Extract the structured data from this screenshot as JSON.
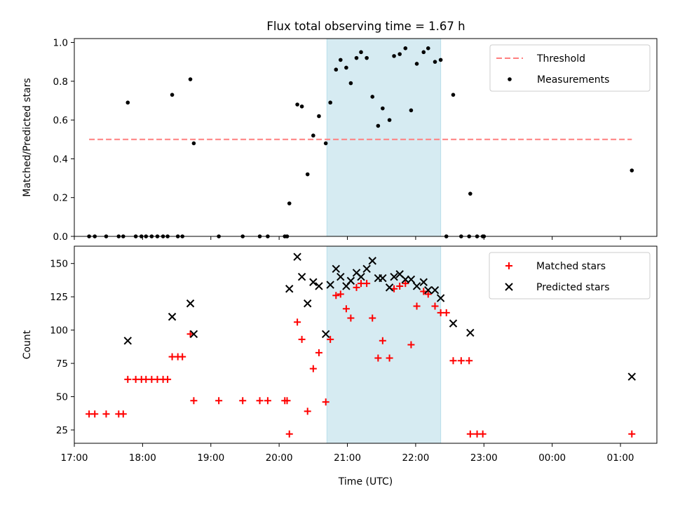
{
  "figure": {
    "title": "Flux total observing time = 1.67 h"
  },
  "colors": {
    "threshold": "#ff7f7f",
    "measurement": "#000000",
    "matched": "#ff0000",
    "predicted": "#000000",
    "highlight_fill": "#add8e6"
  },
  "chart_data": [
    {
      "type": "scatter",
      "title": "Flux total observing time = 1.67 h",
      "xlabel": "",
      "ylabel": "Matched/Predicted stars",
      "xlim": [
        "17:00",
        "01:32"
      ],
      "ylim": [
        0,
        1.02
      ],
      "y_ticks": [
        "0.0",
        "0.2",
        "0.4",
        "0.6",
        "0.8",
        "1.0"
      ],
      "grid": false,
      "legend_position": "top-right",
      "highlight_span": [
        "20:42",
        "22:22"
      ],
      "series": [
        {
          "name": "Threshold",
          "kind": "dashed-line",
          "points": [
            [
              "17:13",
              0.5
            ],
            [
              "01:10",
              0.5
            ]
          ]
        },
        {
          "name": "Measurements",
          "kind": "dots",
          "points": [
            [
              "17:13",
              0
            ],
            [
              "17:18",
              0
            ],
            [
              "17:28",
              0
            ],
            [
              "17:39",
              0
            ],
            [
              "17:43",
              0
            ],
            [
              "17:47",
              0.69
            ],
            [
              "17:54",
              0
            ],
            [
              "17:59",
              0
            ],
            [
              "18:03",
              0
            ],
            [
              "18:08",
              0
            ],
            [
              "18:13",
              0
            ],
            [
              "18:18",
              0
            ],
            [
              "18:22",
              0
            ],
            [
              "18:26",
              0.73
            ],
            [
              "18:31",
              0
            ],
            [
              "18:35",
              0
            ],
            [
              "18:42",
              0.81
            ],
            [
              "18:45",
              0.48
            ],
            [
              "19:07",
              0
            ],
            [
              "19:28",
              0
            ],
            [
              "19:43",
              0
            ],
            [
              "19:50",
              0
            ],
            [
              "20:05",
              0
            ],
            [
              "20:07",
              0
            ],
            [
              "20:09",
              0.17
            ],
            [
              "20:16",
              0.68
            ],
            [
              "20:20",
              0.67
            ],
            [
              "20:25",
              0.32
            ],
            [
              "20:30",
              0.52
            ],
            [
              "20:35",
              0.62
            ],
            [
              "20:41",
              0.48
            ],
            [
              "20:45",
              0.69
            ],
            [
              "20:50",
              0.86
            ],
            [
              "20:54",
              0.91
            ],
            [
              "20:59",
              0.87
            ],
            [
              "21:03",
              0.79
            ],
            [
              "21:08",
              0.92
            ],
            [
              "21:12",
              0.95
            ],
            [
              "21:17",
              0.92
            ],
            [
              "21:22",
              0.72
            ],
            [
              "21:27",
              0.57
            ],
            [
              "21:31",
              0.66
            ],
            [
              "21:37",
              0.6
            ],
            [
              "21:41",
              0.93
            ],
            [
              "21:46",
              0.94
            ],
            [
              "21:51",
              0.97
            ],
            [
              "21:56",
              0.65
            ],
            [
              "22:01",
              0.89
            ],
            [
              "22:07",
              0.95
            ],
            [
              "22:11",
              0.97
            ],
            [
              "22:17",
              0.9
            ],
            [
              "22:22",
              0.91
            ],
            [
              "22:27",
              0
            ],
            [
              "22:33",
              0.73
            ],
            [
              "22:40",
              0
            ],
            [
              "22:47",
              0
            ],
            [
              "22:48",
              0.22
            ],
            [
              "22:54",
              0
            ],
            [
              "22:59",
              0
            ],
            [
              "23:00",
              0
            ],
            [
              "01:10",
              0.34
            ]
          ]
        }
      ]
    },
    {
      "type": "scatter",
      "title": "",
      "xlabel": "Time (UTC)",
      "ylabel": "Count",
      "xlim": [
        "17:00",
        "01:32"
      ],
      "ylim": [
        15,
        163
      ],
      "y_ticks": [
        "25",
        "50",
        "75",
        "100",
        "125",
        "150"
      ],
      "x_ticks": [
        "17:00",
        "18:00",
        "19:00",
        "20:00",
        "21:00",
        "22:00",
        "23:00",
        "00:00",
        "01:00"
      ],
      "grid": false,
      "legend_position": "top-right",
      "highlight_span": [
        "20:42",
        "22:22"
      ],
      "series": [
        {
          "name": "Matched stars",
          "kind": "plus",
          "points": [
            [
              "17:13",
              37
            ],
            [
              "17:18",
              37
            ],
            [
              "17:28",
              37
            ],
            [
              "17:39",
              37
            ],
            [
              "17:43",
              37
            ],
            [
              "17:47",
              63
            ],
            [
              "17:54",
              63
            ],
            [
              "17:59",
              63
            ],
            [
              "18:03",
              63
            ],
            [
              "18:08",
              63
            ],
            [
              "18:13",
              63
            ],
            [
              "18:18",
              63
            ],
            [
              "18:22",
              63
            ],
            [
              "18:26",
              80
            ],
            [
              "18:31",
              80
            ],
            [
              "18:35",
              80
            ],
            [
              "18:42",
              97
            ],
            [
              "18:45",
              47
            ],
            [
              "19:07",
              47
            ],
            [
              "19:28",
              47
            ],
            [
              "19:43",
              47
            ],
            [
              "19:50",
              47
            ],
            [
              "20:05",
              47
            ],
            [
              "20:07",
              47
            ],
            [
              "20:09",
              22
            ],
            [
              "20:16",
              106
            ],
            [
              "20:20",
              93
            ],
            [
              "20:25",
              39
            ],
            [
              "20:30",
              71
            ],
            [
              "20:35",
              83
            ],
            [
              "20:41",
              46
            ],
            [
              "20:45",
              93
            ],
            [
              "20:50",
              126
            ],
            [
              "20:54",
              127
            ],
            [
              "20:59",
              116
            ],
            [
              "21:03",
              109
            ],
            [
              "21:08",
              132
            ],
            [
              "21:12",
              135
            ],
            [
              "21:17",
              135
            ],
            [
              "21:22",
              109
            ],
            [
              "21:27",
              79
            ],
            [
              "21:31",
              92
            ],
            [
              "21:37",
              79
            ],
            [
              "21:41",
              131
            ],
            [
              "21:46",
              133
            ],
            [
              "21:51",
              135
            ],
            [
              "21:56",
              89
            ],
            [
              "22:01",
              118
            ],
            [
              "22:07",
              129
            ],
            [
              "22:11",
              127
            ],
            [
              "22:17",
              118
            ],
            [
              "22:22",
              113
            ],
            [
              "22:27",
              113
            ],
            [
              "22:33",
              77
            ],
            [
              "22:40",
              77
            ],
            [
              "22:47",
              77
            ],
            [
              "22:48",
              22
            ],
            [
              "22:54",
              22
            ],
            [
              "22:59",
              22
            ],
            [
              "01:10",
              22
            ]
          ]
        },
        {
          "name": "Predicted stars",
          "kind": "x",
          "points": [
            [
              "17:47",
              92
            ],
            [
              "18:26",
              110
            ],
            [
              "18:42",
              120
            ],
            [
              "18:45",
              97
            ],
            [
              "20:09",
              131
            ],
            [
              "20:16",
              155
            ],
            [
              "20:20",
              140
            ],
            [
              "20:25",
              120
            ],
            [
              "20:30",
              136
            ],
            [
              "20:35",
              133
            ],
            [
              "20:41",
              97
            ],
            [
              "20:45",
              134
            ],
            [
              "20:50",
              146
            ],
            [
              "20:54",
              140
            ],
            [
              "20:59",
              133
            ],
            [
              "21:03",
              137
            ],
            [
              "21:08",
              143
            ],
            [
              "21:12",
              140
            ],
            [
              "21:17",
              146
            ],
            [
              "21:22",
              152
            ],
            [
              "21:27",
              139
            ],
            [
              "21:31",
              139
            ],
            [
              "21:37",
              132
            ],
            [
              "21:41",
              140
            ],
            [
              "21:46",
              142
            ],
            [
              "21:51",
              138
            ],
            [
              "21:56",
              138
            ],
            [
              "22:01",
              133
            ],
            [
              "22:07",
              136
            ],
            [
              "22:11",
              130
            ],
            [
              "22:17",
              130
            ],
            [
              "22:22",
              124
            ],
            [
              "22:33",
              105
            ],
            [
              "22:48",
              98
            ],
            [
              "01:10",
              65
            ]
          ]
        }
      ]
    }
  ]
}
